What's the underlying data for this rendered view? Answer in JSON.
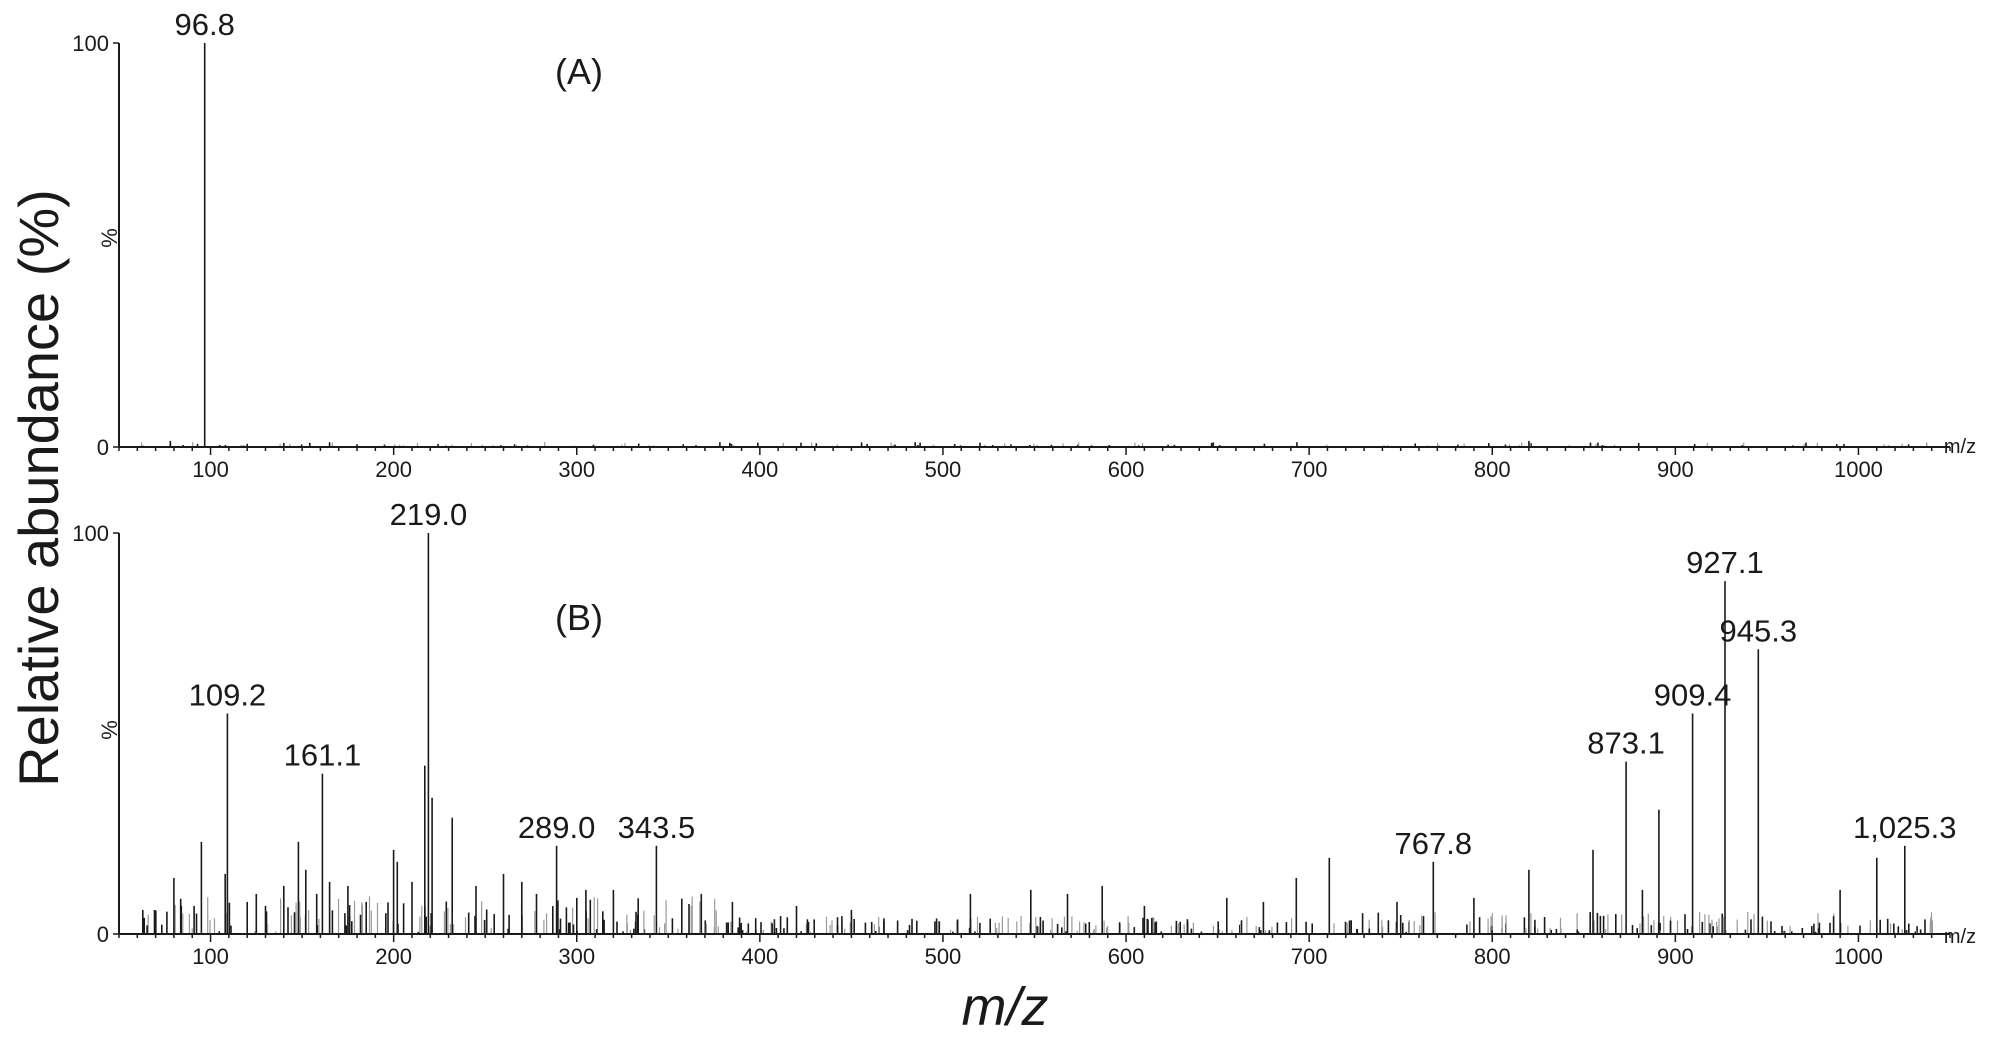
{
  "figure": {
    "ylabel": "Relative abundance (%)",
    "xlabel": "m/z"
  },
  "chart_data": [
    {
      "type": "bar",
      "panel": "(A)",
      "ylabel": "%",
      "xlabel": "m/z",
      "xlim": [
        50,
        1050
      ],
      "ylim": [
        0,
        100
      ],
      "xticks": [
        100,
        200,
        300,
        400,
        500,
        600,
        700,
        800,
        900,
        1000
      ],
      "yticks": [
        0,
        100
      ],
      "annotations": [
        {
          "x": 96.8,
          "text": "96.8"
        }
      ],
      "x": [
        78,
        85,
        96.8,
        105,
        120,
        140,
        165,
        180,
        195,
        820,
        880
      ],
      "y": [
        1.5,
        0.5,
        100,
        0.5,
        0.8,
        1.0,
        1.2,
        0.7,
        0.6,
        1.5,
        1.0
      ]
    },
    {
      "type": "bar",
      "panel": "(B)",
      "ylabel": "%",
      "xlabel": "m/z",
      "xlim": [
        50,
        1050
      ],
      "ylim": [
        0,
        100
      ],
      "xticks": [
        100,
        200,
        300,
        400,
        500,
        600,
        700,
        800,
        900,
        1000
      ],
      "yticks": [
        0,
        100
      ],
      "annotations": [
        {
          "x": 109.2,
          "text": "109.2"
        },
        {
          "x": 161.1,
          "text": "161.1"
        },
        {
          "x": 219.0,
          "text": "219.0"
        },
        {
          "x": 289.0,
          "text": "289.0"
        },
        {
          "x": 343.5,
          "text": "343.5"
        },
        {
          "x": 767.8,
          "text": "767.8"
        },
        {
          "x": 873.1,
          "text": "873.1"
        },
        {
          "x": 909.4,
          "text": "909.4"
        },
        {
          "x": 927.1,
          "text": "927.1"
        },
        {
          "x": 945.3,
          "text": "945.3"
        },
        {
          "x": 1025.3,
          "text": "1,025.3"
        }
      ],
      "x": [
        63,
        80,
        91,
        95,
        108,
        109.2,
        120,
        125,
        130,
        140,
        148,
        152,
        158,
        161.1,
        165,
        175,
        185,
        200,
        202,
        210,
        217,
        219.0,
        221,
        232,
        245,
        260,
        270,
        278,
        289.0,
        300,
        305,
        320,
        343.5,
        368,
        385,
        420,
        450,
        515,
        548,
        568,
        587,
        610,
        655,
        675,
        693,
        711,
        748,
        767.8,
        790,
        820,
        855,
        873.1,
        882,
        891,
        909.4,
        927.1,
        945.3,
        990,
        1010,
        1025.3
      ],
      "y": [
        6,
        14,
        7,
        23,
        15,
        55,
        8,
        10,
        7,
        12,
        23,
        16,
        10,
        40,
        13,
        12,
        8,
        21,
        18,
        13,
        42,
        100,
        34,
        29,
        12,
        15,
        13,
        10,
        22,
        9,
        11,
        11,
        22,
        10,
        8,
        7,
        6,
        10,
        11,
        10,
        12,
        7,
        9,
        8,
        14,
        19,
        8,
        18,
        9,
        16,
        21,
        43,
        11,
        31,
        55,
        88,
        71,
        11,
        19,
        22
      ]
    }
  ]
}
